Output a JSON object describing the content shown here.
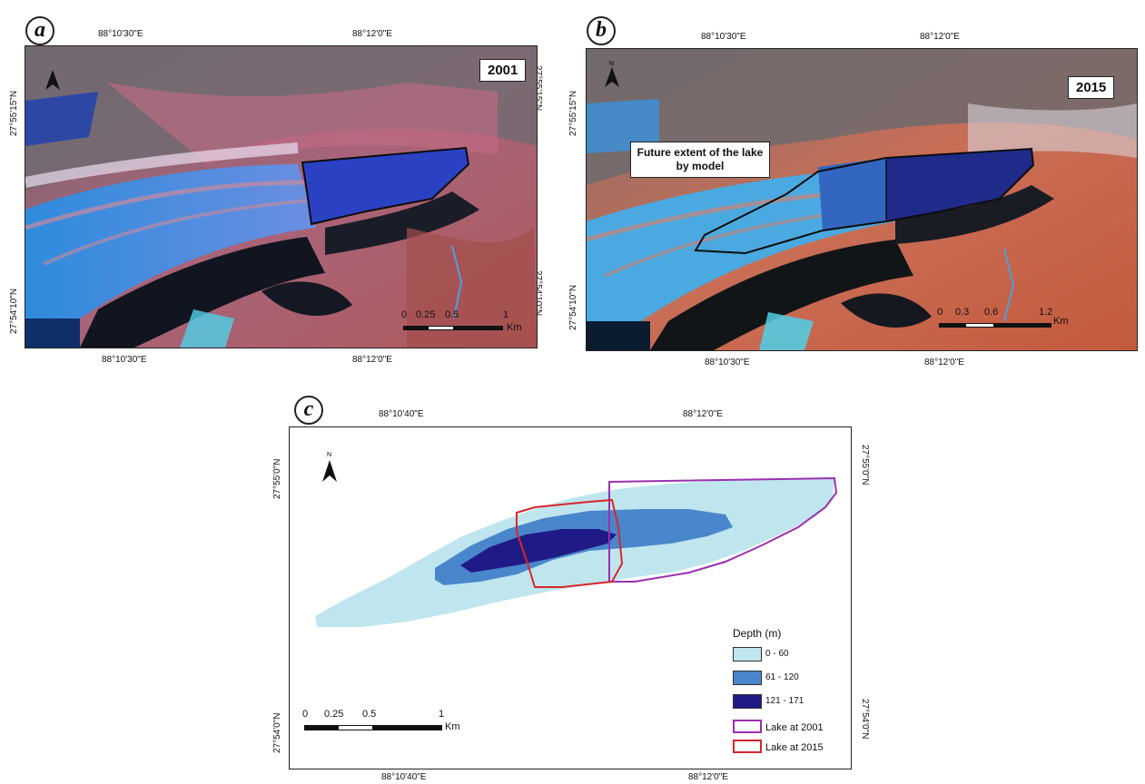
{
  "panels": {
    "a": {
      "letter": "a",
      "year": "2001",
      "top_lon": [
        "88°10'30\"E",
        "88°12'0\"E"
      ],
      "bottom_lon": [
        "88°10'30\"E",
        "88°12'0\"E"
      ],
      "left_lat": [
        "27°55'15\"N",
        "27°54'10\"N"
      ],
      "right_lat": [
        "27°55'15\"N",
        "27°54'10\"N"
      ],
      "scale": {
        "ticks": [
          "0",
          "0.25",
          "0.5",
          "1"
        ],
        "unit": "Km"
      }
    },
    "b": {
      "letter": "b",
      "year": "2015",
      "annotation": "Future extent of the lake by model",
      "top_lon": [
        "88°10'30\"E",
        "88°12'0\"E"
      ],
      "bottom_lon": [
        "88°10'30\"E",
        "88°12'0\"E"
      ],
      "scale": {
        "ticks": [
          "0",
          "0.3",
          "0.6",
          "1.2"
        ],
        "unit": "Km"
      }
    },
    "c": {
      "letter": "c",
      "top_lon": [
        "88°10'40\"E",
        "88°12'0\"E"
      ],
      "bottom_lon": [
        "88°10'40\"E",
        "88°12'0\"E"
      ],
      "left_lat": [
        "27°55'0\"N",
        "27°54'0\"N"
      ],
      "right_lat": [
        "27°55'0\"N",
        "27°54'0\"N"
      ],
      "scale": {
        "ticks": [
          "0",
          "0.25",
          "0.5",
          "1"
        ],
        "unit": "Km"
      },
      "legend": {
        "title": "Depth (m)",
        "classes": [
          {
            "label": "0 - 60",
            "color": "#bfe6ee"
          },
          {
            "label": "61 - 120",
            "color": "#4a86cc"
          },
          {
            "label": "121 - 171",
            "color": "#1f1a86"
          }
        ],
        "outlines": [
          {
            "label": "Lake at 2001",
            "color": "#9b2fb0"
          },
          {
            "label": "Lake at 2015",
            "color": "#d9262b"
          }
        ]
      }
    }
  },
  "north_arrow_label": "N"
}
